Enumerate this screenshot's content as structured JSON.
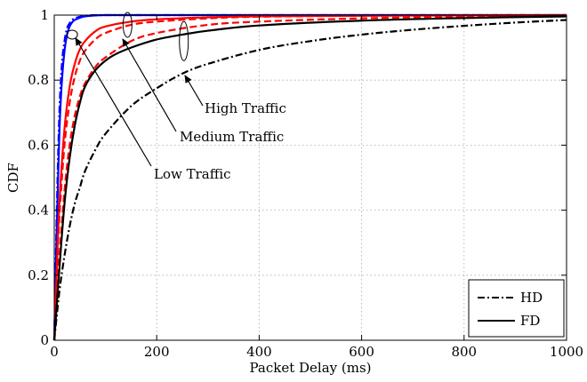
{
  "chart_data": {
    "type": "line",
    "title": "",
    "xlabel": "Packet Delay (ms)",
    "ylabel": "CDF",
    "xlim": [
      0,
      1000
    ],
    "ylim": [
      0,
      1
    ],
    "xticks": [
      0,
      200,
      400,
      600,
      800,
      1000
    ],
    "yticks": [
      0,
      0.2,
      0.4,
      0.6,
      0.8,
      1
    ],
    "grid": true,
    "legend": {
      "placement": "bottom-right",
      "entries": [
        {
          "label": "HD",
          "style": "dash-dot"
        },
        {
          "label": "FD",
          "style": "solid"
        }
      ]
    },
    "series": [
      {
        "traffic": "low",
        "duplex": "HD",
        "color": "#0000ff",
        "dash": "dash-dot",
        "x": [
          0,
          5,
          10,
          15,
          20,
          25,
          30,
          35,
          40,
          50,
          60,
          80,
          100,
          150,
          200,
          1000
        ],
        "y": [
          0,
          0.4,
          0.7,
          0.85,
          0.92,
          0.96,
          0.975,
          0.985,
          0.99,
          0.995,
          0.998,
          1,
          1,
          1,
          1,
          1
        ]
      },
      {
        "traffic": "low",
        "duplex": "FD",
        "color": "#0000ff",
        "dash": "solid",
        "x": [
          0,
          5,
          10,
          15,
          20,
          25,
          30,
          35,
          40,
          50,
          60,
          80,
          100,
          150,
          200,
          1000
        ],
        "y": [
          0,
          0.35,
          0.64,
          0.8,
          0.89,
          0.94,
          0.965,
          0.978,
          0.985,
          0.992,
          0.996,
          0.999,
          1,
          1,
          1,
          1
        ]
      },
      {
        "traffic": "medium",
        "duplex": "HD",
        "color": "#ff0000",
        "dash": "dashed",
        "x": [
          0,
          5,
          10,
          20,
          30,
          40,
          50,
          60,
          80,
          100,
          150,
          200,
          300,
          400,
          600,
          800,
          1000
        ],
        "y": [
          0,
          0.2,
          0.38,
          0.6,
          0.73,
          0.81,
          0.86,
          0.89,
          0.925,
          0.945,
          0.97,
          0.98,
          0.99,
          0.995,
          0.998,
          0.999,
          1
        ]
      },
      {
        "traffic": "medium",
        "duplex": "FD",
        "color": "#ff0000",
        "dash": "solid",
        "x": [
          0,
          5,
          10,
          20,
          30,
          40,
          50,
          60,
          80,
          100,
          150,
          200,
          300,
          400,
          600,
          800,
          1000
        ],
        "y": [
          0,
          0.22,
          0.42,
          0.65,
          0.78,
          0.85,
          0.895,
          0.92,
          0.95,
          0.965,
          0.98,
          0.987,
          0.993,
          0.996,
          0.998,
          0.999,
          1
        ]
      },
      {
        "traffic": "medium",
        "duplex": "FD",
        "color": "#ff0000",
        "dash": "dashed",
        "x": [
          0,
          10,
          20,
          30,
          40,
          50,
          60,
          80,
          100,
          150,
          200,
          300,
          400,
          600,
          800,
          1000
        ],
        "y": [
          0,
          0.25,
          0.46,
          0.6,
          0.69,
          0.75,
          0.79,
          0.84,
          0.87,
          0.92,
          0.945,
          0.97,
          0.98,
          0.99,
          0.995,
          0.998
        ]
      },
      {
        "traffic": "high",
        "duplex": "FD",
        "color": "#000000",
        "dash": "solid",
        "x": [
          0,
          10,
          20,
          30,
          40,
          50,
          60,
          80,
          100,
          120,
          150,
          200,
          250,
          300,
          400,
          600,
          800,
          1000
        ],
        "y": [
          0,
          0.22,
          0.42,
          0.56,
          0.66,
          0.73,
          0.78,
          0.83,
          0.86,
          0.88,
          0.9,
          0.925,
          0.94,
          0.952,
          0.968,
          0.983,
          0.991,
          0.996
        ]
      },
      {
        "traffic": "high",
        "duplex": "HD",
        "color": "#000000",
        "dash": "dash-dot",
        "x": [
          0,
          10,
          20,
          30,
          40,
          50,
          60,
          80,
          100,
          150,
          200,
          250,
          300,
          400,
          500,
          600,
          700,
          800,
          900,
          1000
        ],
        "y": [
          0,
          0.15,
          0.26,
          0.35,
          0.42,
          0.47,
          0.52,
          0.585,
          0.635,
          0.72,
          0.775,
          0.82,
          0.85,
          0.893,
          0.92,
          0.94,
          0.955,
          0.967,
          0.977,
          0.985
        ]
      }
    ],
    "annotations": [
      {
        "label": "High Traffic",
        "ellipse_at": [
          253,
          0.92
        ],
        "arrow_to": [
          253,
          0.83
        ]
      },
      {
        "label": "Medium Traffic",
        "ellipse_at": [
          143,
          0.97
        ],
        "arrow_to": [
          140,
          0.94
        ]
      },
      {
        "label": "Low Traffic",
        "ellipse_at": [
          35,
          0.94
        ],
        "arrow_to": [
          42,
          0.92
        ]
      }
    ]
  }
}
